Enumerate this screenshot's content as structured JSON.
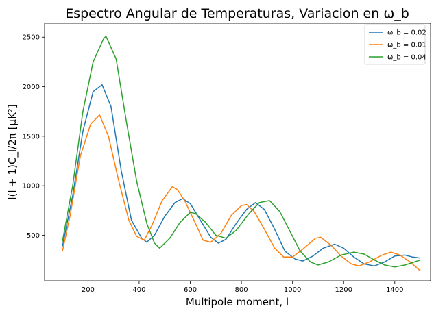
{
  "chart_data": {
    "type": "line",
    "title": "Espectro Angular de Temperaturas, Variacion en ω_b",
    "xlabel": "Multipole moment, l",
    "ylabel": "l(l + 1)C_l/2π [μK²]",
    "xlim": [
      30,
      1540
    ],
    "ylim": [
      40,
      2640
    ],
    "xticks": [
      200,
      400,
      600,
      800,
      1000,
      1200,
      1400
    ],
    "yticks": [
      500,
      1000,
      1500,
      2000,
      2500
    ],
    "grid": false,
    "legend_position": "top-right",
    "series": [
      {
        "name": "ω_b = 0.02",
        "color": "#1f77b4",
        "points": [
          [
            100,
            390
          ],
          [
            140,
            900
          ],
          [
            180,
            1550
          ],
          [
            220,
            1950
          ],
          [
            255,
            2020
          ],
          [
            290,
            1800
          ],
          [
            330,
            1150
          ],
          [
            370,
            650
          ],
          [
            410,
            470
          ],
          [
            430,
            430
          ],
          [
            460,
            500
          ],
          [
            500,
            690
          ],
          [
            540,
            830
          ],
          [
            570,
            870
          ],
          [
            600,
            820
          ],
          [
            640,
            650
          ],
          [
            680,
            480
          ],
          [
            710,
            420
          ],
          [
            740,
            460
          ],
          [
            780,
            620
          ],
          [
            820,
            760
          ],
          [
            855,
            830
          ],
          [
            890,
            760
          ],
          [
            930,
            560
          ],
          [
            970,
            340
          ],
          [
            1010,
            260
          ],
          [
            1040,
            240
          ],
          [
            1080,
            290
          ],
          [
            1120,
            370
          ],
          [
            1165,
            410
          ],
          [
            1200,
            370
          ],
          [
            1240,
            280
          ],
          [
            1280,
            210
          ],
          [
            1320,
            190
          ],
          [
            1360,
            230
          ],
          [
            1400,
            290
          ],
          [
            1440,
            300
          ],
          [
            1470,
            280
          ],
          [
            1500,
            270
          ]
        ]
      },
      {
        "name": "ω_b = 0.01",
        "color": "#ff7f0e",
        "points": [
          [
            100,
            340
          ],
          [
            130,
            700
          ],
          [
            170,
            1300
          ],
          [
            210,
            1620
          ],
          [
            245,
            1715
          ],
          [
            280,
            1500
          ],
          [
            320,
            1050
          ],
          [
            360,
            650
          ],
          [
            390,
            490
          ],
          [
            420,
            450
          ],
          [
            450,
            600
          ],
          [
            490,
            850
          ],
          [
            530,
            990
          ],
          [
            550,
            960
          ],
          [
            580,
            840
          ],
          [
            620,
            620
          ],
          [
            650,
            450
          ],
          [
            680,
            430
          ],
          [
            720,
            520
          ],
          [
            760,
            700
          ],
          [
            800,
            800
          ],
          [
            820,
            810
          ],
          [
            850,
            740
          ],
          [
            890,
            560
          ],
          [
            930,
            370
          ],
          [
            965,
            280
          ],
          [
            1000,
            280
          ],
          [
            1040,
            360
          ],
          [
            1090,
            470
          ],
          [
            1110,
            480
          ],
          [
            1150,
            400
          ],
          [
            1190,
            290
          ],
          [
            1230,
            210
          ],
          [
            1260,
            190
          ],
          [
            1300,
            230
          ],
          [
            1350,
            300
          ],
          [
            1385,
            330
          ],
          [
            1420,
            300
          ],
          [
            1460,
            230
          ],
          [
            1500,
            140
          ]
        ]
      },
      {
        "name": "ω_b = 0.04",
        "color": "#2ca02c",
        "points": [
          [
            100,
            440
          ],
          [
            140,
            1000
          ],
          [
            180,
            1750
          ],
          [
            220,
            2250
          ],
          [
            260,
            2480
          ],
          [
            270,
            2510
          ],
          [
            310,
            2280
          ],
          [
            350,
            1650
          ],
          [
            390,
            1050
          ],
          [
            430,
            620
          ],
          [
            460,
            420
          ],
          [
            480,
            370
          ],
          [
            520,
            470
          ],
          [
            560,
            630
          ],
          [
            600,
            730
          ],
          [
            620,
            720
          ],
          [
            660,
            630
          ],
          [
            700,
            500
          ],
          [
            740,
            470
          ],
          [
            780,
            550
          ],
          [
            830,
            720
          ],
          [
            870,
            830
          ],
          [
            910,
            850
          ],
          [
            950,
            740
          ],
          [
            990,
            540
          ],
          [
            1030,
            340
          ],
          [
            1070,
            230
          ],
          [
            1100,
            200
          ],
          [
            1140,
            230
          ],
          [
            1190,
            300
          ],
          [
            1240,
            330
          ],
          [
            1280,
            310
          ],
          [
            1320,
            250
          ],
          [
            1360,
            200
          ],
          [
            1400,
            180
          ],
          [
            1440,
            200
          ],
          [
            1500,
            250
          ]
        ]
      }
    ]
  }
}
